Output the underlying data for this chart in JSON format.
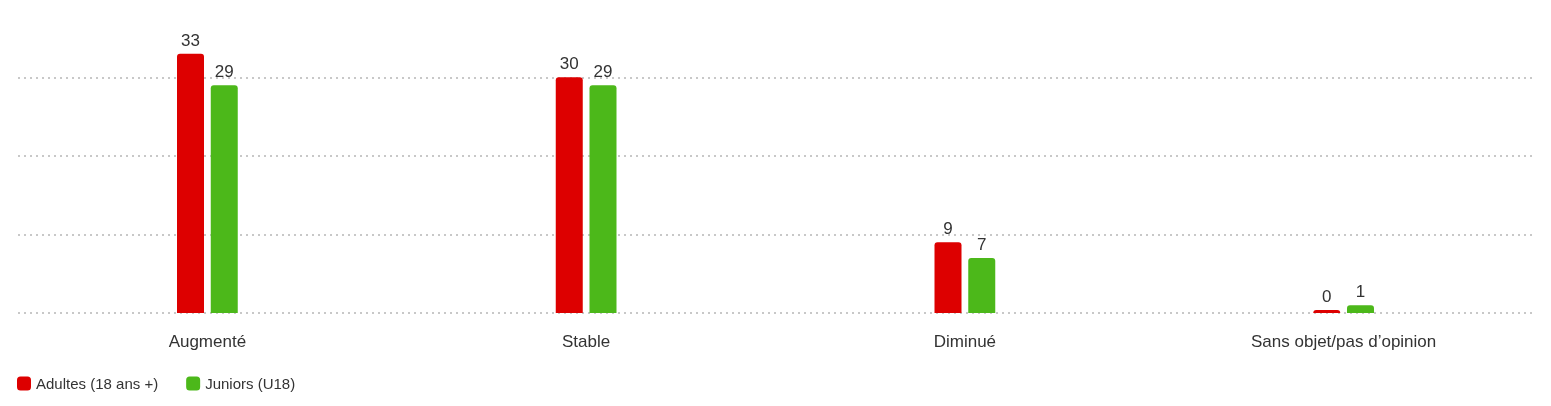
{
  "chart_data": {
    "type": "bar",
    "categories": [
      "Augmenté",
      "Stable",
      "Diminué",
      "Sans objet/pas d’opinion"
    ],
    "series": [
      {
        "name": "Adultes (18 ans +)",
        "color": "#dd0000",
        "values": [
          33,
          30,
          9,
          0
        ]
      },
      {
        "name": "Juniors (U18)",
        "color": "#4cb81a",
        "values": [
          29,
          29,
          7,
          1
        ]
      }
    ],
    "yticks": [
      {
        "value": 0,
        "label": null
      },
      {
        "value": 10,
        "label": null
      },
      {
        "value": 20,
        "label": null
      },
      {
        "value": 30,
        "label": null
      }
    ],
    "tick_labels": "x",
    "grid": "y",
    "data_labels": true,
    "legend": "bottom left"
  }
}
